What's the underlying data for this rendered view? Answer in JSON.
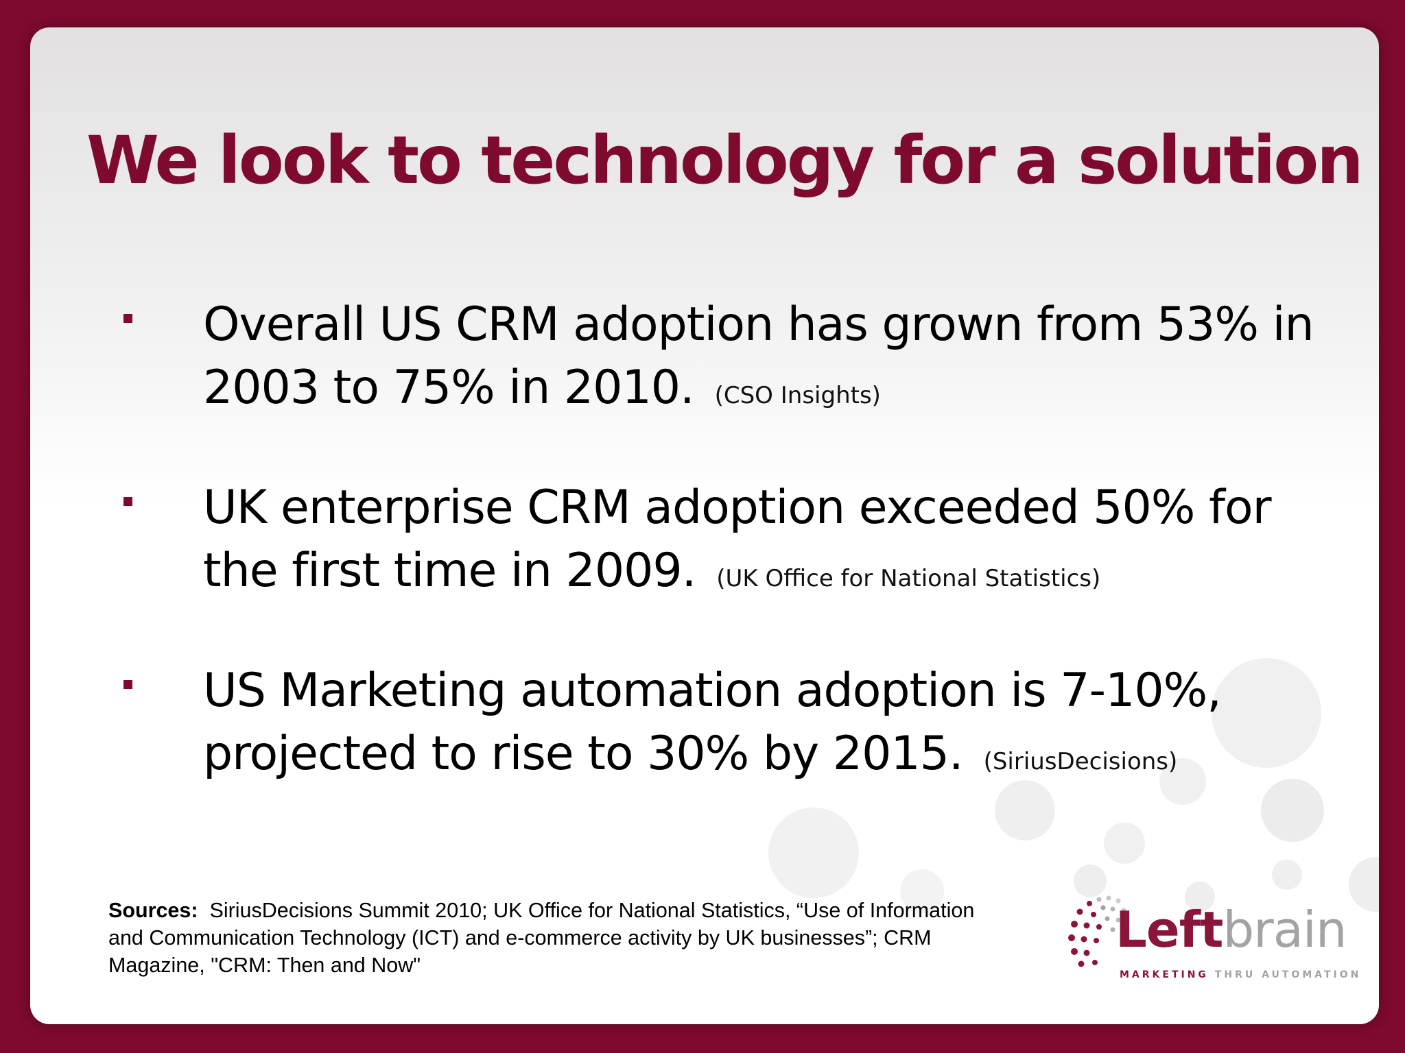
{
  "slide": {
    "title": "We look to technology for a solution",
    "bullets": [
      {
        "text": "Overall US CRM adoption has grown from 53% in 2003 to 75% in 2010.",
        "source": "(CSO Insights)"
      },
      {
        "text": "UK enterprise CRM adoption exceeded 50% for the first time in 2009.",
        "source": "(UK Office for National Statistics)"
      },
      {
        "text": "US Marketing automation adoption is 7-10%, projected to rise to 30% by 2015.",
        "source": "(SiriusDecisions)"
      }
    ],
    "sources_label": "Sources:",
    "sources_text": "SiriusDecisions Summit 2010; UK Office for National Statistics, “Use of Information and Communication Technology (ICT) and e-commerce activity by UK businesses”; CRM Magazine, \"CRM: Then and Now\""
  },
  "logo": {
    "left": "Left",
    "brain": "brain",
    "tagline_a": "MARKETING",
    "tagline_b": "THRU AUTOMATION"
  },
  "colors": {
    "frame": "#7e0a2e",
    "accent": "#8a1538",
    "logo_gray": "#a3a3a3"
  }
}
